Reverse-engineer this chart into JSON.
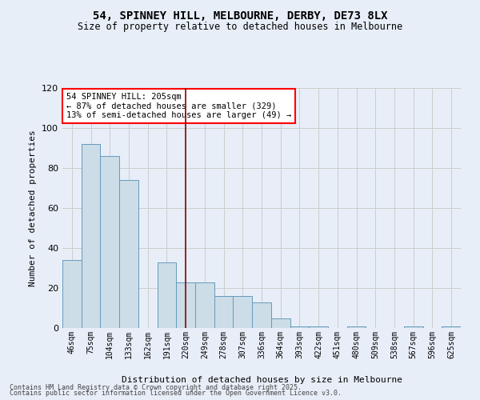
{
  "title1": "54, SPINNEY HILL, MELBOURNE, DERBY, DE73 8LX",
  "title2": "Size of property relative to detached houses in Melbourne",
  "xlabel": "Distribution of detached houses by size in Melbourne",
  "ylabel": "Number of detached properties",
  "categories": [
    "46sqm",
    "75sqm",
    "104sqm",
    "133sqm",
    "162sqm",
    "191sqm",
    "220sqm",
    "249sqm",
    "278sqm",
    "307sqm",
    "336sqm",
    "364sqm",
    "393sqm",
    "422sqm",
    "451sqm",
    "480sqm",
    "509sqm",
    "538sqm",
    "567sqm",
    "596sqm",
    "625sqm"
  ],
  "values": [
    34,
    92,
    86,
    74,
    0,
    33,
    23,
    23,
    16,
    16,
    13,
    5,
    1,
    1,
    0,
    1,
    0,
    0,
    1,
    0,
    1
  ],
  "bar_color": "#ccdde8",
  "bar_edge_color": "#6699bb",
  "grid_color": "#cccccc",
  "bg_color": "#e8eef8",
  "red_line_x": 6.0,
  "annotation_text": "54 SPINNEY HILL: 205sqm\n← 87% of detached houses are smaller (329)\n13% of semi-detached houses are larger (49) →",
  "annotation_box_color": "white",
  "annotation_box_edge": "red",
  "ylim": [
    0,
    120
  ],
  "yticks": [
    0,
    20,
    40,
    60,
    80,
    100,
    120
  ],
  "footer1": "Contains HM Land Registry data © Crown copyright and database right 2025.",
  "footer2": "Contains public sector information licensed under the Open Government Licence v3.0."
}
